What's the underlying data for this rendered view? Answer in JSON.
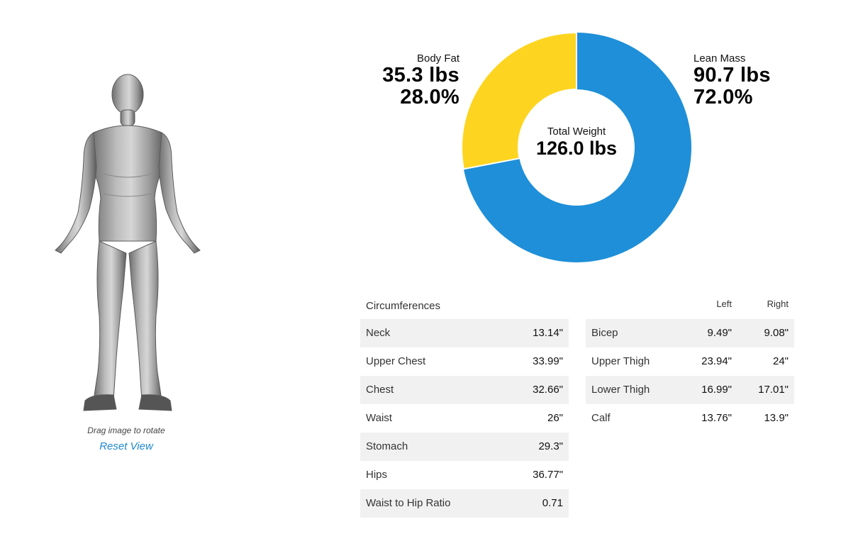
{
  "viewer": {
    "drag_hint": "Drag image to rotate",
    "reset_label": "Reset View"
  },
  "composition": {
    "body_fat": {
      "label": "Body Fat",
      "weight": "35.3 lbs",
      "percent": "28.0%",
      "fraction": 0.28,
      "color": "#fdd520"
    },
    "lean_mass": {
      "label": "Lean Mass",
      "weight": "90.7 lbs",
      "percent": "72.0%",
      "fraction": 0.72,
      "color": "#1e8fd8"
    },
    "total": {
      "label": "Total Weight",
      "value": "126.0 lbs"
    }
  },
  "circumferences": {
    "title": "Circumferences",
    "rows": [
      {
        "name": "Neck",
        "value": "13.14\""
      },
      {
        "name": "Upper Chest",
        "value": "33.99\""
      },
      {
        "name": "Chest",
        "value": "32.66\""
      },
      {
        "name": "Waist",
        "value": "26\""
      },
      {
        "name": "Stomach",
        "value": "29.3\""
      },
      {
        "name": "Hips",
        "value": "36.77\""
      },
      {
        "name": "Waist to Hip Ratio",
        "value": "0.71"
      }
    ]
  },
  "limbs": {
    "left_header": "Left",
    "right_header": "Right",
    "rows": [
      {
        "name": "Bicep",
        "left": "9.49\"",
        "right": "9.08\""
      },
      {
        "name": "Upper Thigh",
        "left": "23.94\"",
        "right": "24\""
      },
      {
        "name": "Lower Thigh",
        "left": "16.99\"",
        "right": "17.01\""
      },
      {
        "name": "Calf",
        "left": "13.76\"",
        "right": "13.9\""
      }
    ]
  }
}
